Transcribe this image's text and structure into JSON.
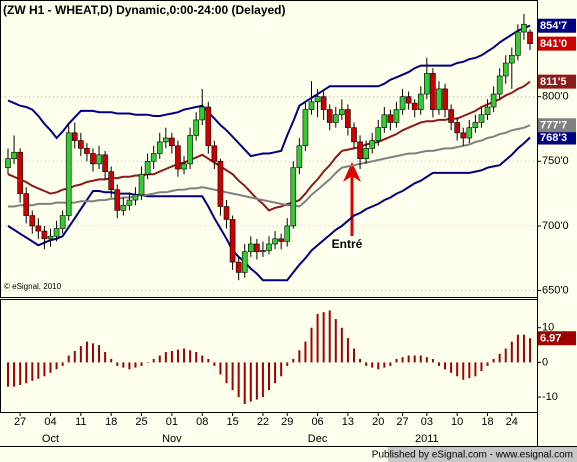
{
  "chart_data": {
    "type": "candlestick",
    "title": "(ZW H1 - WHEAT,D) Dynamic,0:00-24:00 (Delayed)",
    "categories": [
      null,
      null,
      "27",
      null,
      null,
      null,
      null,
      "04",
      null,
      null,
      null,
      null,
      "11",
      null,
      null,
      null,
      null,
      "18",
      null,
      null,
      null,
      null,
      "25",
      null,
      null,
      null,
      null,
      "01",
      null,
      null,
      null,
      null,
      "08",
      null,
      null,
      null,
      null,
      "15",
      null,
      null,
      null,
      null,
      "22",
      null,
      null,
      null,
      "29",
      null,
      null,
      null,
      null,
      "06",
      null,
      null,
      null,
      null,
      "13",
      null,
      null,
      null,
      null,
      "20",
      null,
      null,
      null,
      "27",
      null,
      null,
      null,
      "03",
      null,
      null,
      null,
      null,
      "10",
      null,
      null,
      null,
      null,
      "18",
      null,
      null,
      null,
      "24",
      null,
      null,
      null
    ],
    "months": [
      null,
      null,
      null,
      null,
      null,
      null,
      null,
      "Oct",
      null,
      null,
      null,
      null,
      null,
      null,
      null,
      null,
      null,
      null,
      null,
      null,
      null,
      null,
      null,
      null,
      null,
      null,
      null,
      "Nov",
      null,
      null,
      null,
      null,
      null,
      null,
      null,
      null,
      null,
      null,
      null,
      null,
      null,
      null,
      null,
      null,
      null,
      null,
      null,
      null,
      null,
      null,
      null,
      "Dec",
      null,
      null,
      null,
      null,
      null,
      null,
      null,
      null,
      null,
      null,
      null,
      null,
      null,
      null,
      null,
      null,
      null,
      "2011",
      null,
      null,
      null,
      null,
      null,
      null,
      null,
      null,
      null,
      null,
      null,
      null,
      null,
      null,
      null,
      null,
      null
    ],
    "candles": {
      "up_color": "#33cc33",
      "down_color": "#cc0000",
      "open": [
        745,
        752,
        757,
        725,
        708,
        700,
        696,
        690,
        692,
        698,
        708,
        772,
        766,
        760,
        756,
        748,
        755,
        742,
        728,
        712,
        716,
        720,
        724,
        740,
        750,
        756,
        765,
        768,
        762,
        744,
        748,
        770,
        782,
        792,
        762,
        750,
        715,
        705,
        672,
        664,
        680,
        686,
        680,
        681,
        686,
        690,
        688,
        700,
        745,
        762,
        790,
        796,
        800,
        790,
        780,
        786,
        790,
        776,
        765,
        752,
        760,
        766,
        776,
        786,
        780,
        790,
        800,
        795,
        790,
        802,
        818,
        790,
        806,
        790,
        780,
        772,
        768,
        776,
        780,
        786,
        792,
        802,
        816,
        826,
        832,
        850,
        850
      ],
      "high": [
        760,
        770,
        760,
        730,
        712,
        706,
        700,
        698,
        704,
        712,
        778,
        780,
        772,
        764,
        760,
        762,
        758,
        746,
        732,
        722,
        726,
        730,
        746,
        756,
        762,
        772,
        776,
        772,
        766,
        754,
        776,
        788,
        806,
        796,
        766,
        752,
        720,
        708,
        676,
        686,
        692,
        690,
        688,
        692,
        696,
        694,
        706,
        750,
        768,
        796,
        812,
        806,
        804,
        794,
        792,
        798,
        794,
        780,
        770,
        766,
        772,
        782,
        792,
        790,
        796,
        806,
        804,
        798,
        808,
        830,
        822,
        812,
        810,
        794,
        784,
        776,
        782,
        786,
        792,
        798,
        808,
        822,
        832,
        838,
        856,
        864,
        852
      ],
      "low": [
        740,
        748,
        718,
        702,
        694,
        690,
        682,
        684,
        688,
        694,
        704,
        760,
        754,
        750,
        742,
        744,
        736,
        722,
        706,
        708,
        712,
        716,
        720,
        736,
        744,
        752,
        760,
        756,
        738,
        740,
        744,
        766,
        778,
        756,
        744,
        708,
        698,
        666,
        658,
        660,
        676,
        674,
        676,
        678,
        682,
        682,
        684,
        698,
        740,
        758,
        786,
        784,
        782,
        774,
        776,
        782,
        770,
        760,
        744,
        748,
        756,
        762,
        772,
        774,
        776,
        786,
        790,
        784,
        786,
        798,
        784,
        786,
        784,
        774,
        766,
        762,
        764,
        772,
        776,
        782,
        788,
        798,
        810,
        806,
        828,
        844,
        836
      ],
      "close": [
        752,
        757,
        725,
        708,
        700,
        696,
        690,
        692,
        698,
        708,
        772,
        766,
        760,
        756,
        748,
        755,
        742,
        728,
        712,
        716,
        720,
        724,
        740,
        750,
        756,
        765,
        768,
        762,
        744,
        748,
        770,
        782,
        792,
        762,
        750,
        715,
        705,
        672,
        664,
        680,
        686,
        680,
        681,
        686,
        690,
        688,
        700,
        745,
        762,
        790,
        796,
        800,
        790,
        780,
        786,
        790,
        776,
        765,
        752,
        760,
        766,
        776,
        786,
        780,
        790,
        800,
        795,
        790,
        802,
        818,
        790,
        806,
        790,
        780,
        772,
        768,
        776,
        780,
        786,
        792,
        802,
        816,
        826,
        832,
        850,
        856,
        841
      ],
      "last": {
        "value": 841,
        "label": "841'0",
        "color": "#cc0000"
      }
    },
    "lines": [
      {
        "color": "#000080",
        "values": [
          797,
          795,
          793,
          792,
          790,
          785,
          779,
          774,
          768,
          773,
          779,
          784,
          789,
          789,
          789,
          788,
          788,
          788,
          787,
          787,
          787,
          786,
          786,
          786,
          785,
          785,
          786,
          787,
          788,
          790,
          791,
          792,
          793,
          788,
          783,
          778,
          774,
          769,
          764,
          759,
          754,
          755,
          756,
          756,
          757,
          758,
          770,
          781,
          793,
          796,
          799,
          802,
          805,
          808,
          808,
          808,
          808,
          808,
          808,
          808,
          808,
          808,
          810,
          813,
          815,
          817,
          819,
          822,
          824,
          824,
          824,
          824,
          824,
          824,
          826,
          827,
          829,
          830,
          832,
          835,
          838,
          842,
          845,
          848,
          851,
          853,
          854.875
        ],
        "last": {
          "value": 854.875,
          "label": "854'7"
        }
      },
      {
        "color": "#000080",
        "values": [
          700,
          697,
          694,
          691,
          688,
          685,
          687,
          689,
          690,
          692,
          699,
          706,
          713,
          720,
          727,
          727,
          726,
          726,
          725,
          725,
          725,
          724,
          724,
          723,
          723,
          723,
          723,
          723,
          723,
          723,
          723,
          723,
          723,
          715,
          706,
          698,
          690,
          681,
          676,
          672,
          667,
          663,
          658,
          658,
          658,
          658,
          658,
          664,
          670,
          675,
          681,
          685,
          689,
          693,
          697,
          700,
          704,
          708,
          710,
          713,
          715,
          717,
          720,
          722,
          725,
          727,
          730,
          733,
          735,
          738,
          741,
          741,
          741,
          741,
          741,
          741,
          741,
          742,
          743,
          745,
          746,
          747,
          751,
          755,
          760,
          764,
          768.375
        ],
        "last": {
          "value": 768.375,
          "label": "768'3"
        }
      },
      {
        "color": "#8b1a1a",
        "values": [
          740,
          738,
          736,
          734,
          731,
          729,
          727,
          725,
          726,
          728,
          729,
          731,
          732,
          734,
          735,
          736,
          736,
          737,
          737,
          738,
          738,
          739,
          739,
          740,
          740,
          742,
          744,
          746,
          748,
          749,
          751,
          753,
          755,
          752,
          749,
          746,
          743,
          740,
          735,
          731,
          726,
          721,
          717,
          712,
          714,
          715,
          717,
          718,
          720,
          725,
          731,
          736,
          742,
          747,
          753,
          758,
          759,
          760,
          761,
          763,
          764,
          765,
          767,
          769,
          771,
          774,
          776,
          778,
          780,
          781,
          781,
          782,
          782,
          783,
          783,
          785,
          787,
          789,
          792,
          794,
          796,
          798,
          801,
          803,
          806,
          808,
          811.625
        ],
        "last": {
          "value": 811.625,
          "label": "811'5"
        }
      },
      {
        "color": "#808080",
        "values": [
          715,
          715,
          716,
          716,
          716,
          717,
          717,
          717,
          718,
          718,
          718,
          718,
          719,
          719,
          719,
          720,
          720,
          721,
          721,
          722,
          722,
          723,
          724,
          724,
          725,
          726,
          726,
          727,
          728,
          728,
          729,
          729,
          730,
          729,
          728,
          727,
          726,
          725,
          724,
          723,
          722,
          721,
          720,
          719,
          718,
          717,
          716,
          716,
          715,
          719,
          724,
          728,
          732,
          736,
          741,
          745,
          746,
          747,
          748,
          749,
          750,
          751,
          752,
          753,
          754,
          755,
          756,
          756,
          757,
          758,
          758,
          759,
          760,
          760,
          761,
          762,
          763,
          765,
          766,
          768,
          769,
          771,
          772,
          774,
          775,
          776,
          777.875
        ],
        "last": {
          "value": 777.875,
          "label": "777'7"
        }
      }
    ],
    "ylim": [
      645,
      874
    ],
    "yticks": [
      {
        "value": 650,
        "label": "650'0"
      },
      {
        "value": 700,
        "label": "700'0"
      },
      {
        "value": 750,
        "label": "750'0"
      },
      {
        "value": 800,
        "label": "800'0"
      }
    ],
    "grid": true,
    "annotations": [
      {
        "text": "Entré"
      },
      {
        "text": "© eSignal, 2010"
      }
    ],
    "oscillator": {
      "color": "#a00000",
      "values": [
        -7,
        -7,
        -6.5,
        -6,
        -5.3,
        -4.7,
        -4,
        -3,
        -2,
        -1,
        2,
        3.3,
        4.7,
        6,
        5.5,
        5,
        3,
        1,
        -1,
        -1.5,
        -2,
        -1.5,
        -1,
        0,
        1,
        2,
        3,
        3.3,
        3.7,
        4,
        3.5,
        3,
        2,
        1,
        -1,
        -3.5,
        -6,
        -8,
        -10,
        -12,
        -11.3,
        -10.7,
        -10,
        -8,
        -6,
        -4,
        -1,
        1,
        3.5,
        6,
        10,
        14,
        14.5,
        15,
        12.5,
        10,
        7,
        4,
        1,
        -1,
        -1.5,
        -2,
        -1.5,
        -1,
        1,
        1.5,
        2,
        2,
        2,
        1.5,
        1,
        -1,
        -2,
        -3,
        -4,
        -5,
        -4.5,
        -4,
        -2.5,
        -1,
        1,
        2.5,
        4,
        6,
        8,
        8,
        6.97
      ],
      "ylim": [
        -14.3,
        18
      ],
      "yticks": [
        10,
        0,
        -10
      ],
      "last": {
        "value": 6.97,
        "label": "6.97"
      }
    }
  },
  "footer": "Published by eSignal.com - www.esignal.com"
}
